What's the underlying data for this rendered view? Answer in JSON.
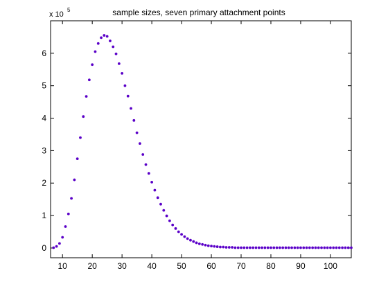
{
  "chart_data": {
    "type": "scatter",
    "title": "sample sizes, seven primary attachment points",
    "xlabel": "",
    "ylabel": "",
    "y_multiplier_label": "x 10",
    "y_multiplier_exp": "5",
    "xlim": [
      6,
      107
    ],
    "ylim": [
      -0.3,
      7.0
    ],
    "x_ticks": [
      10,
      20,
      30,
      40,
      50,
      60,
      70,
      80,
      90,
      100
    ],
    "y_ticks": [
      0,
      1,
      2,
      3,
      4,
      5,
      6
    ],
    "grid": false,
    "legend": "none",
    "marker_color": "#5a00c8",
    "series": [
      {
        "x": [
          7,
          8,
          9,
          10,
          11,
          12,
          13,
          14,
          15,
          16,
          17,
          18,
          19,
          20,
          21,
          22,
          23,
          24,
          25,
          26,
          27,
          28,
          29,
          30,
          31,
          32,
          33,
          34,
          35,
          36,
          37,
          38,
          39,
          40,
          41,
          42,
          43,
          44,
          45,
          46,
          47,
          48,
          49,
          50,
          51,
          52,
          53,
          54,
          55,
          56,
          57,
          58,
          59,
          60,
          61,
          62,
          63,
          64,
          65,
          66,
          67,
          68,
          69,
          70,
          71,
          72,
          73,
          74,
          75,
          76,
          77,
          78,
          79,
          80,
          81,
          82,
          83,
          84,
          85,
          86,
          87,
          88,
          89,
          90,
          91,
          92,
          93,
          94,
          95,
          96,
          97,
          98,
          99,
          100,
          101,
          102,
          103,
          104,
          105,
          106,
          107
        ],
        "values": [
          0.01,
          0.05,
          0.14,
          0.33,
          0.66,
          1.05,
          1.53,
          2.1,
          2.75,
          3.4,
          4.05,
          4.67,
          5.18,
          5.65,
          6.05,
          6.3,
          6.48,
          6.55,
          6.52,
          6.38,
          6.2,
          5.98,
          5.68,
          5.38,
          5.0,
          4.68,
          4.3,
          3.93,
          3.55,
          3.22,
          2.88,
          2.57,
          2.3,
          2.03,
          1.78,
          1.55,
          1.35,
          1.16,
          0.99,
          0.84,
          0.71,
          0.6,
          0.5,
          0.42,
          0.35,
          0.29,
          0.24,
          0.2,
          0.16,
          0.13,
          0.11,
          0.09,
          0.07,
          0.06,
          0.05,
          0.04,
          0.03,
          0.03,
          0.02,
          0.02,
          0.02,
          0.01,
          0.01,
          0.01,
          0.01,
          0.01,
          0.01,
          0.01,
          0.01,
          0.01,
          0.01,
          0.01,
          0.01,
          0.01,
          0.01,
          0.01,
          0.01,
          0.01,
          0.01,
          0.01,
          0.01,
          0.01,
          0.01,
          0.01,
          0.01,
          0.01,
          0.01,
          0.01,
          0.01,
          0.01,
          0.01,
          0.01,
          0.01,
          0.01,
          0.01,
          0.01,
          0.01,
          0.01,
          0.01,
          0.01,
          0.01
        ]
      }
    ]
  }
}
